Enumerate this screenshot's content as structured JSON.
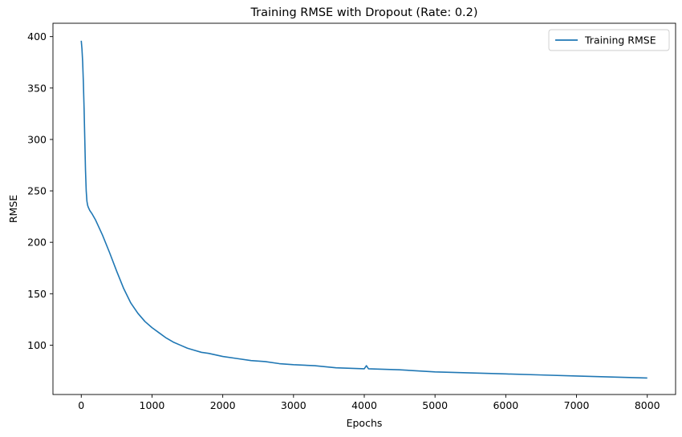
{
  "chart_data": {
    "type": "line",
    "title": "Training RMSE with Dropout (Rate: 0.2)",
    "xlabel": "Epochs",
    "ylabel": "RMSE",
    "xlim": [
      -400,
      8400
    ],
    "ylim": [
      52,
      413
    ],
    "xticks": [
      0,
      1000,
      2000,
      3000,
      4000,
      5000,
      6000,
      7000,
      8000
    ],
    "yticks": [
      100,
      150,
      200,
      250,
      300,
      350,
      400
    ],
    "grid": false,
    "legend": "top-right",
    "series": [
      {
        "name": "Training RMSE",
        "color": "#1f77b4",
        "x": [
          0,
          10,
          20,
          30,
          40,
          50,
          60,
          70,
          80,
          90,
          100,
          120,
          150,
          200,
          300,
          400,
          500,
          600,
          700,
          800,
          900,
          1000,
          1100,
          1200,
          1300,
          1400,
          1500,
          1600,
          1700,
          1800,
          2000,
          2200,
          2400,
          2600,
          2800,
          3000,
          3300,
          3600,
          4000,
          4030,
          4060,
          4500,
          5000,
          5500,
          6000,
          6500,
          7000,
          7500,
          8000
        ],
        "y": [
          396,
          388,
          375,
          355,
          330,
          300,
          270,
          250,
          240,
          236,
          234,
          231,
          228,
          222,
          207,
          190,
          172,
          155,
          141,
          131,
          123,
          117,
          112,
          107,
          103,
          100,
          97,
          95,
          93,
          92,
          89,
          87,
          85,
          84,
          82,
          81,
          80,
          78,
          77,
          80,
          77,
          76,
          74,
          73,
          72,
          71,
          70,
          69,
          68
        ]
      }
    ]
  }
}
